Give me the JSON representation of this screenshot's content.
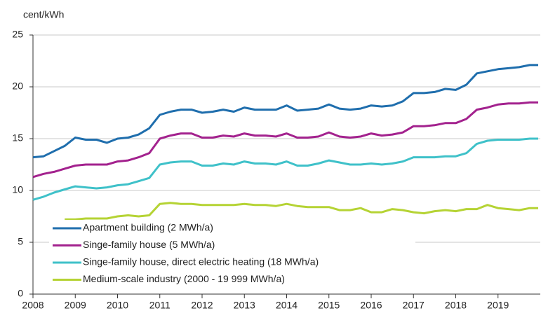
{
  "chart_data": {
    "type": "line",
    "y_label": "cent/kWh",
    "x": [
      2008,
      2008.25,
      2008.5,
      2008.75,
      2009,
      2009.25,
      2009.5,
      2009.75,
      2010,
      2010.25,
      2010.5,
      2010.75,
      2011,
      2011.25,
      2011.5,
      2011.75,
      2012,
      2012.25,
      2012.5,
      2012.75,
      2013,
      2013.25,
      2013.5,
      2013.75,
      2014,
      2014.25,
      2014.5,
      2014.75,
      2015,
      2015.25,
      2015.5,
      2015.75,
      2016,
      2016.25,
      2016.5,
      2016.75,
      2017,
      2017.25,
      2017.5,
      2017.75,
      2018,
      2018.25,
      2018.5,
      2018.75,
      2019,
      2019.25,
      2019.5,
      2019.75,
      2019.95
    ],
    "series": [
      {
        "name": "Apartment building (2 MWh/a)",
        "color": "#1f6ead",
        "values": [
          13.2,
          13.3,
          13.8,
          14.3,
          15.1,
          14.9,
          14.9,
          14.6,
          15.0,
          15.1,
          15.4,
          16.0,
          17.3,
          17.6,
          17.8,
          17.8,
          17.5,
          17.6,
          17.8,
          17.6,
          18.0,
          17.8,
          17.8,
          17.8,
          18.2,
          17.7,
          17.8,
          17.9,
          18.3,
          17.9,
          17.8,
          17.9,
          18.2,
          18.1,
          18.2,
          18.6,
          19.4,
          19.4,
          19.5,
          19.8,
          19.7,
          20.2,
          21.3,
          21.5,
          21.7,
          21.8,
          21.9,
          22.1,
          22.1
        ]
      },
      {
        "name": "Singe-family house (5 MWh/a)",
        "color": "#a3228e",
        "values": [
          11.3,
          11.6,
          11.8,
          12.1,
          12.4,
          12.5,
          12.5,
          12.5,
          12.8,
          12.9,
          13.2,
          13.6,
          15.0,
          15.3,
          15.5,
          15.5,
          15.1,
          15.1,
          15.3,
          15.2,
          15.5,
          15.3,
          15.3,
          15.2,
          15.5,
          15.1,
          15.1,
          15.2,
          15.6,
          15.2,
          15.1,
          15.2,
          15.5,
          15.3,
          15.4,
          15.6,
          16.2,
          16.2,
          16.3,
          16.5,
          16.5,
          16.9,
          17.8,
          18.0,
          18.3,
          18.4,
          18.4,
          18.5,
          18.5
        ]
      },
      {
        "name": "Singe-family house, direct electric heating (18 MWh/a)",
        "color": "#3fc1c9",
        "values": [
          9.1,
          9.4,
          9.8,
          10.1,
          10.4,
          10.3,
          10.2,
          10.3,
          10.5,
          10.6,
          10.9,
          11.2,
          12.5,
          12.7,
          12.8,
          12.8,
          12.4,
          12.4,
          12.6,
          12.5,
          12.8,
          12.6,
          12.6,
          12.5,
          12.8,
          12.4,
          12.4,
          12.6,
          12.9,
          12.7,
          12.5,
          12.5,
          12.6,
          12.5,
          12.6,
          12.8,
          13.2,
          13.2,
          13.2,
          13.3,
          13.3,
          13.6,
          14.5,
          14.8,
          14.9,
          14.9,
          14.9,
          15.0,
          15.0
        ]
      },
      {
        "name": "Medium-scale industry (2000 - 19 999 MWh/a)",
        "color": "#b5d334",
        "values": [
          null,
          null,
          null,
          7.2,
          7.2,
          7.3,
          7.3,
          7.3,
          7.5,
          7.6,
          7.5,
          7.6,
          8.7,
          8.8,
          8.7,
          8.7,
          8.6,
          8.6,
          8.6,
          8.6,
          8.7,
          8.6,
          8.6,
          8.5,
          8.7,
          8.5,
          8.4,
          8.4,
          8.4,
          8.1,
          8.1,
          8.3,
          7.9,
          7.9,
          8.2,
          8.1,
          7.9,
          7.8,
          8.0,
          8.1,
          8.0,
          8.2,
          8.2,
          8.6,
          8.3,
          8.2,
          8.1,
          8.3,
          8.3
        ]
      }
    ],
    "xlim": [
      2008,
      2020
    ],
    "xticks": [
      2008,
      2009,
      2010,
      2011,
      2012,
      2013,
      2014,
      2015,
      2016,
      2017,
      2018,
      2019
    ],
    "ylim": [
      0,
      25
    ],
    "yticks": [
      0,
      5,
      10,
      15,
      20,
      25
    ],
    "grid": true,
    "legend": "lower left"
  }
}
